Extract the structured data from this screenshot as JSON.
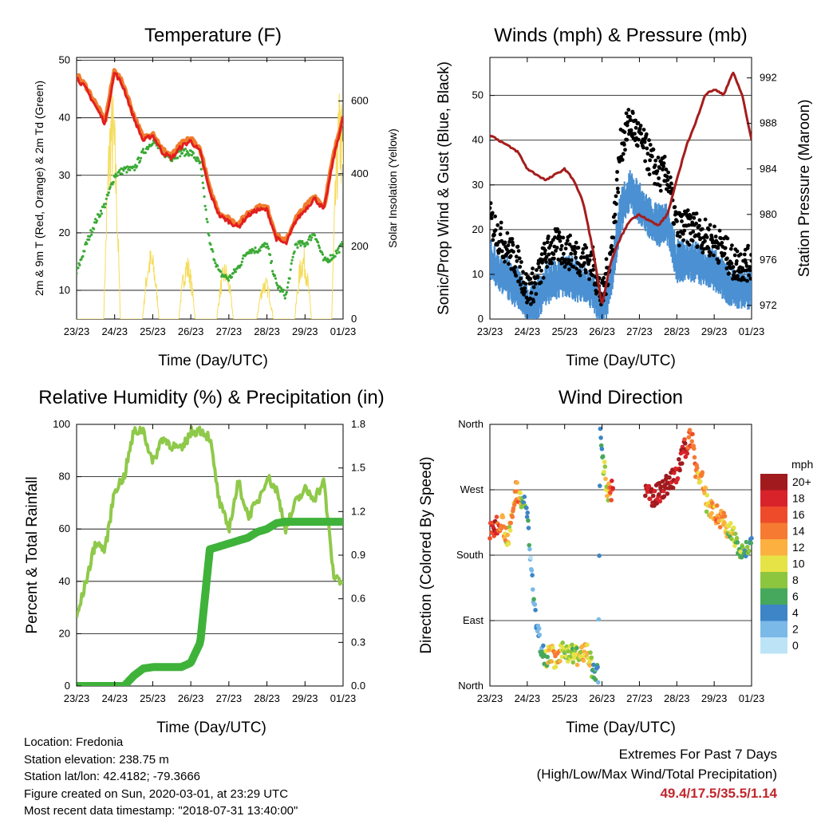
{
  "x_ticks": [
    "23/23",
    "24/23",
    "25/23",
    "26/23",
    "27/23",
    "28/23",
    "29/23",
    "01/23"
  ],
  "colors": {
    "temp_2m": "#e21f1f",
    "temp_9m": "#f07d2c",
    "dewpoint": "#3aaa35",
    "insolation": "#f5dc5a",
    "wind": "#4a90d2",
    "gust": "#000000",
    "pressure": "#a51d1d",
    "rh": "#8fc94a",
    "precip": "#3fb23a"
  },
  "chart_data": [
    {
      "type": "line",
      "title": "Temperature (F)",
      "xlabel": "Time (Day/UTC)",
      "ylabel": "2m & 9m T (Red, Orange) & 2m Td (Green)",
      "y2label": "Solar Insolation (Yellow)",
      "ylim": [
        5,
        50.5
      ],
      "yticks": [
        10,
        20,
        30,
        40,
        50
      ],
      "y2lim": [
        0,
        720
      ],
      "y2ticks": [
        0,
        200,
        400,
        600
      ],
      "x": [
        0,
        0.25,
        0.5,
        0.75,
        1,
        1.25,
        1.5,
        1.75,
        2,
        2.25,
        2.5,
        2.75,
        3,
        3.25,
        3.5,
        3.75,
        4,
        4.25,
        4.5,
        4.75,
        5,
        5.25,
        5.5,
        5.75,
        6,
        6.25,
        6.5,
        6.75,
        7
      ],
      "series": [
        {
          "name": "2m T",
          "values": [
            47,
            45,
            42,
            39,
            48,
            45,
            40,
            36,
            37,
            34,
            33,
            35,
            36,
            34,
            27,
            23,
            22,
            21,
            23,
            24,
            24,
            19,
            18,
            22,
            24,
            26,
            24,
            33,
            40
          ]
        },
        {
          "name": "9m T",
          "values": [
            47.5,
            45.5,
            42.5,
            39.5,
            48.5,
            45.5,
            40.5,
            36.5,
            37.5,
            34.5,
            33.5,
            35.5,
            36.5,
            34.5,
            27.5,
            23.5,
            22.5,
            21.5,
            23.5,
            24.5,
            24.5,
            19.5,
            18.5,
            22.5,
            24.5,
            26.5,
            24.5,
            33.5,
            40.5
          ]
        },
        {
          "name": "2m Td",
          "values": [
            13,
            18,
            22,
            25,
            30,
            31,
            31,
            34,
            36,
            34,
            33,
            34,
            34,
            32,
            18,
            13,
            12,
            14,
            17,
            17,
            18,
            11,
            9,
            18,
            18,
            20,
            15,
            16,
            18
          ]
        }
      ],
      "insolation": {
        "peak_x": [
          0.93,
          1.95,
          2.9,
          3.9,
          4.95,
          5.95,
          6.92
        ],
        "peak_values": [
          650,
          200,
          180,
          160,
          120,
          200,
          640
        ]
      }
    },
    {
      "type": "scatter",
      "title": "Winds (mph) & Pressure (mb)",
      "xlabel": "Time (Day/UTC)",
      "ylabel": "Sonic/Prop Wind & Gust (Blue, Black)",
      "y2label": "Station Pressure (Maroon)",
      "ylim": [
        0,
        58.5
      ],
      "yticks": [
        0,
        10,
        20,
        30,
        40,
        50
      ],
      "y2lim": [
        970.8,
        993.8
      ],
      "y2ticks": [
        972,
        976,
        980,
        984,
        988,
        992
      ],
      "x": [
        0,
        0.25,
        0.5,
        0.75,
        1,
        1.25,
        1.5,
        1.75,
        2,
        2.25,
        2.5,
        2.75,
        3,
        3.25,
        3.5,
        3.75,
        4,
        4.25,
        4.5,
        4.75,
        5,
        5.25,
        5.5,
        5.75,
        6,
        6.25,
        6.5,
        6.75,
        7
      ],
      "series": [
        {
          "name": "Wind",
          "values": [
            14,
            12,
            10,
            8,
            4,
            5,
            9,
            10,
            11,
            10,
            9,
            8,
            2,
            10,
            25,
            30,
            27,
            24,
            22,
            22,
            14,
            14,
            14,
            13,
            12,
            10,
            8,
            8,
            8
          ]
        },
        {
          "name": "Gust",
          "values": [
            22,
            18,
            15,
            12,
            6,
            8,
            14,
            16,
            15,
            14,
            13,
            12,
            4,
            15,
            38,
            44,
            40,
            36,
            32,
            32,
            20,
            20,
            20,
            18,
            17,
            15,
            12,
            12,
            12
          ]
        },
        {
          "name": "Pressure",
          "values": [
            987,
            986.5,
            986,
            985.5,
            984,
            983.5,
            983,
            983.5,
            984,
            983,
            981,
            977,
            972,
            976,
            978,
            979.5,
            980,
            979.5,
            979,
            980,
            983,
            986,
            988,
            990.5,
            991,
            990.5,
            992.5,
            990.5,
            986.5
          ]
        }
      ]
    },
    {
      "type": "line",
      "title": "Relative Humidity (%) & Precipitation (in)",
      "xlabel": "Time (Day/UTC)",
      "ylabel": "Percent & Total Rainfall",
      "ylim": [
        0,
        100
      ],
      "yticks": [
        0,
        20,
        40,
        60,
        80,
        100
      ],
      "y2lim": [
        0,
        1.8
      ],
      "y2ticks": [
        0.0,
        0.3,
        0.6,
        0.9,
        1.2,
        1.5,
        1.8
      ],
      "x": [
        0,
        0.25,
        0.5,
        0.75,
        1,
        1.25,
        1.5,
        1.75,
        2,
        2.25,
        2.5,
        2.75,
        3,
        3.25,
        3.5,
        3.75,
        4,
        4.25,
        4.5,
        4.75,
        5,
        5.25,
        5.5,
        5.75,
        6,
        6.25,
        6.5,
        6.75,
        7
      ],
      "series": [
        {
          "name": "RH",
          "values": [
            26,
            40,
            55,
            52,
            75,
            80,
            97,
            98,
            85,
            95,
            92,
            90,
            97,
            98,
            95,
            70,
            60,
            78,
            65,
            70,
            80,
            75,
            60,
            70,
            75,
            72,
            78,
            42,
            40
          ]
        },
        {
          "name": "Precip",
          "values": [
            0,
            0,
            0,
            0,
            0,
            0,
            0.07,
            0.12,
            0.13,
            0.13,
            0.13,
            0.13,
            0.16,
            0.3,
            0.94,
            0.96,
            0.98,
            1.0,
            1.02,
            1.06,
            1.08,
            1.12,
            1.13,
            1.13,
            1.13,
            1.13,
            1.13,
            1.13,
            1.13
          ]
        }
      ]
    },
    {
      "type": "scatter",
      "title": "Wind Direction",
      "xlabel": "Time (Day/UTC)",
      "ylabel": "Direction (Colored By Speed)",
      "ylim": [
        0,
        360
      ],
      "yticks": [
        "North",
        "East",
        "South",
        "West",
        "North"
      ],
      "x": [
        0,
        0.15,
        0.3,
        0.5,
        0.7,
        0.8,
        0.9,
        1.0,
        1.05,
        1.1,
        1.15,
        1.2,
        1.3,
        1.4,
        1.5,
        1.6,
        1.8,
        2.0,
        2.2,
        2.4,
        2.6,
        2.8,
        2.85,
        2.9,
        2.95,
        3.05,
        3.15,
        3.3,
        4.2,
        4.4,
        4.6,
        4.8,
        5.0,
        5.2,
        5.4,
        5.5,
        5.6,
        5.7,
        5.8,
        6.0,
        6.2,
        6.4,
        6.5,
        6.6,
        6.7,
        6.8,
        6.9
      ],
      "values": [
        210,
        220,
        230,
        200,
        270,
        265,
        250,
        240,
        200,
        170,
        130,
        100,
        70,
        50,
        40,
        45,
        35,
        50,
        45,
        40,
        50,
        10,
        30,
        5,
        345,
        300,
        265,
        270,
        265,
        260,
        270,
        280,
        290,
        325,
        345,
        300,
        290,
        280,
        250,
        240,
        230,
        215,
        205,
        200,
        190,
        185,
        190
      ],
      "speeds": [
        16,
        18,
        14,
        10,
        14,
        12,
        6,
        5,
        4,
        3,
        2,
        4,
        3,
        5,
        8,
        10,
        12,
        9,
        8,
        10,
        12,
        4,
        4,
        5,
        3,
        8,
        10,
        20,
        20,
        20,
        20,
        20,
        20,
        18,
        16,
        14,
        12,
        14,
        10,
        12,
        14,
        8,
        10,
        6,
        8,
        7,
        6
      ],
      "legend": {
        "title": "mph",
        "labels": [
          "20+",
          "18",
          "16",
          "14",
          "12",
          "10",
          "8",
          "6",
          "4",
          "2",
          "0"
        ],
        "colors": [
          "#a11a1e",
          "#d8232a",
          "#ee4b2b",
          "#f67a32",
          "#fbb040",
          "#e6e346",
          "#8cc63f",
          "#46a85c",
          "#3d85c6",
          "#7bb9e8",
          "#bde4f6"
        ]
      }
    }
  ],
  "footer": {
    "location": "Location: Fredonia",
    "elevation": "Station elevation: 238.75 m",
    "latlon": "Station lat/lon: 42.4182; -79.3666",
    "created": "Figure created on Sun, 2020-03-01, at 23:29 UTC",
    "recent": "Most recent data timestamp: \"2018-07-31 13:40:00\""
  },
  "extremes": {
    "title": "Extremes For Past 7 Days",
    "subtitle": "(High/Low/Max Wind/Total Precipitation)",
    "values": "49.4/17.5/35.5/1.14"
  }
}
